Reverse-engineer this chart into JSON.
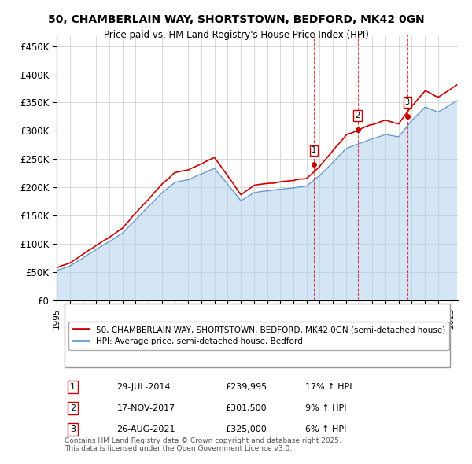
{
  "title_line1": "50, CHAMBERLAIN WAY, SHORTSTOWN, BEDFORD, MK42 0GN",
  "title_line2": "Price paid vs. HM Land Registry's House Price Index (HPI)",
  "ylabel": "",
  "ylim": [
    0,
    470000
  ],
  "yticks": [
    0,
    50000,
    100000,
    150000,
    200000,
    250000,
    300000,
    350000,
    400000,
    450000
  ],
  "ytick_labels": [
    "£0",
    "£50K",
    "£100K",
    "£150K",
    "£200K",
    "£250K",
    "£300K",
    "£350K",
    "£400K",
    "£450K"
  ],
  "sale_color": "#cc0000",
  "hpi_color": "#6699cc",
  "hpi_fill_color": "#aaccee",
  "sale_dates": [
    "2014-07-29",
    "2017-11-17",
    "2021-08-26"
  ],
  "sale_prices": [
    239995,
    301500,
    325000
  ],
  "sale_labels": [
    "1",
    "2",
    "3"
  ],
  "sale_label_percents": [
    "17% ↑ HPI",
    "9% ↑ HPI",
    "6% ↑ HPI"
  ],
  "sale_label_dates_str": [
    "29-JUL-2014",
    "17-NOV-2017",
    "26-AUG-2021"
  ],
  "sale_prices_str": [
    "£239,995",
    "£301,500",
    "£325,000"
  ],
  "legend_line1": "50, CHAMBERLAIN WAY, SHORTSTOWN, BEDFORD, MK42 0GN (semi-detached house)",
  "legend_line2": "HPI: Average price, semi-detached house, Bedford",
  "footnote": "Contains HM Land Registry data © Crown copyright and database right 2025.\nThis data is licensed under the Open Government Licence v3.0.",
  "background_color": "#ffffff",
  "plot_bg_color": "#ffffff",
  "grid_color": "#cccccc"
}
